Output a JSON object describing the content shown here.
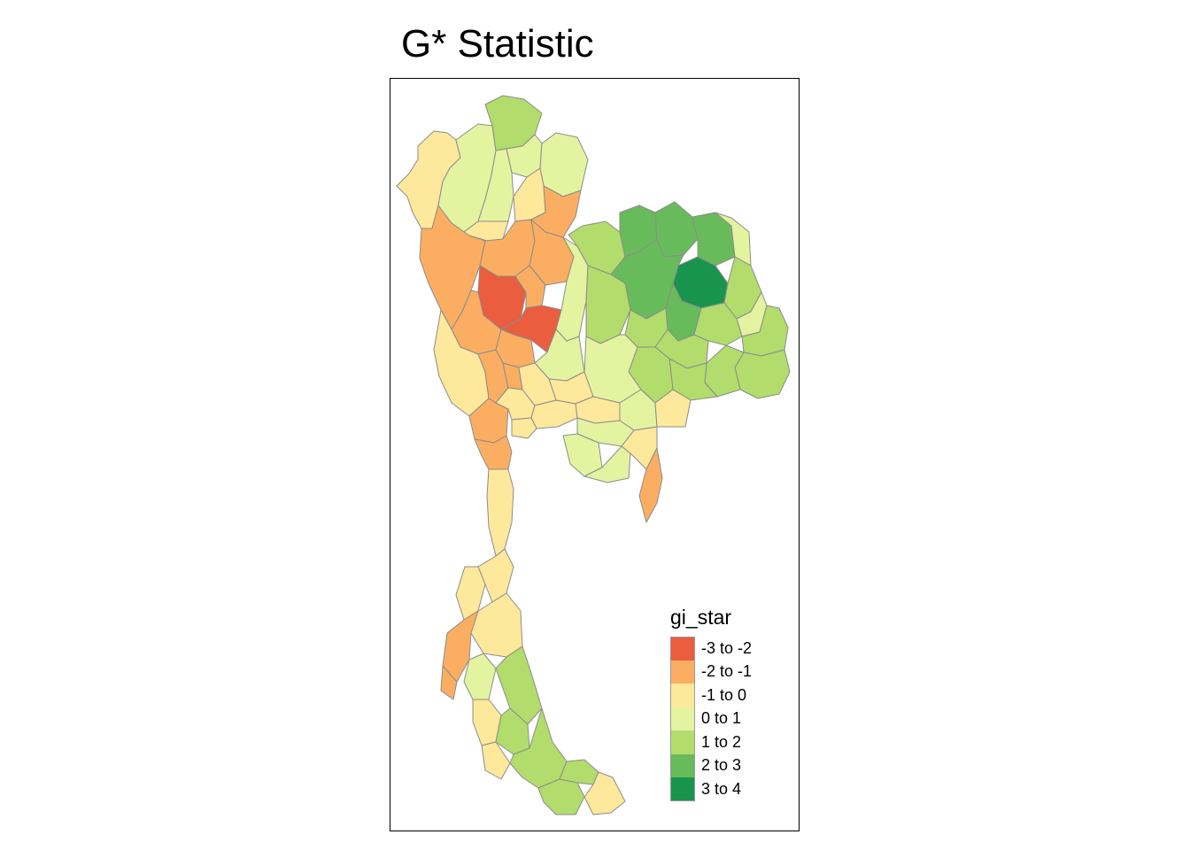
{
  "title": "G* Statistic",
  "legend": {
    "title": "gi_star",
    "items": [
      {
        "label": "-3 to -2",
        "color": "#ea5d3e"
      },
      {
        "label": "-2 to -1",
        "color": "#fbae61"
      },
      {
        "label": "-1 to 0",
        "color": "#fee89c"
      },
      {
        "label": "0 to 1",
        "color": "#e4f3a0"
      },
      {
        "label": "1 to 2",
        "color": "#b2dc6c"
      },
      {
        "label": "2 to 3",
        "color": "#68bb5a"
      },
      {
        "label": "3 to 4",
        "color": "#19944c"
      }
    ]
  },
  "map": {
    "region": "Thailand provinces",
    "variable": "gi_star",
    "border_color": "#8c8c8c",
    "frame_color": "#000000"
  }
}
